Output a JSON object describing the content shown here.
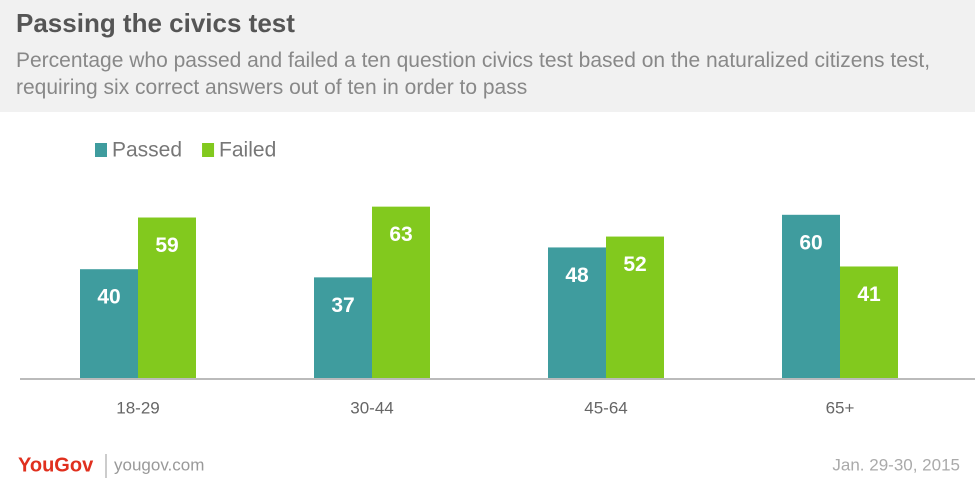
{
  "chart_data": {
    "type": "bar",
    "title": "Passing the civics test",
    "subtitle": "Percentage who passed and failed a ten question civics test based on the naturalized citizens test, requiring six correct answers out of ten in order to pass",
    "categories": [
      "18-29",
      "30-44",
      "45-64",
      "65+"
    ],
    "series": [
      {
        "name": "Passed",
        "color": "#3f9c9e",
        "values": [
          40,
          37,
          48,
          60
        ]
      },
      {
        "name": "Failed",
        "color": "#82c91e",
        "values": [
          59,
          63,
          52,
          41
        ]
      }
    ],
    "brand": "YouGov",
    "source": "yougov.com",
    "date": "Jan. 29-30, 2015"
  }
}
